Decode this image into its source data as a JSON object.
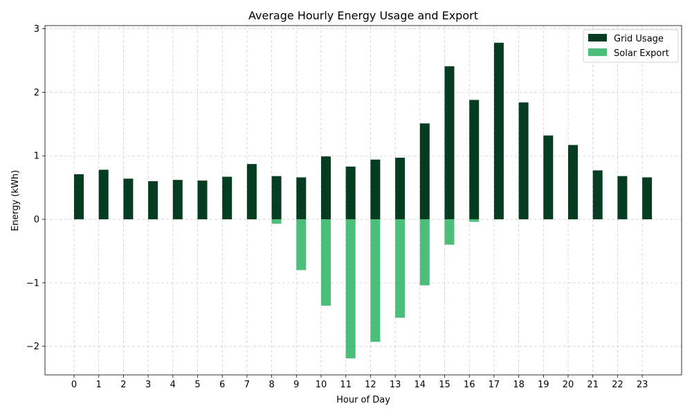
{
  "chart_data": {
    "type": "bar",
    "title": "Average Hourly Energy Usage and Export",
    "xlabel": "Hour of Day",
    "ylabel": "Energy (kWh)",
    "ylim": [
      -2.45,
      3.05
    ],
    "yticks": [
      -2,
      -1,
      0,
      1,
      2,
      3
    ],
    "ytick_labels": [
      "−2",
      "−1",
      "0",
      "1",
      "2",
      "3"
    ],
    "grid": true,
    "legend_position": "top-right",
    "categories": [
      "0",
      "1",
      "2",
      "3",
      "4",
      "5",
      "6",
      "7",
      "8",
      "9",
      "10",
      "11",
      "12",
      "13",
      "14",
      "15",
      "16",
      "17",
      "18",
      "19",
      "20",
      "21",
      "22",
      "23"
    ],
    "series": [
      {
        "name": "Grid Usage",
        "color": "#063d21",
        "values": [
          0.71,
          0.78,
          0.64,
          0.6,
          0.62,
          0.61,
          0.67,
          0.87,
          0.68,
          0.66,
          0.99,
          0.83,
          0.94,
          0.97,
          1.51,
          2.41,
          1.88,
          2.78,
          1.84,
          1.32,
          1.17,
          0.77,
          0.68,
          0.66
        ]
      },
      {
        "name": "Solar Export",
        "color": "#4bbf7a",
        "values": [
          0,
          0,
          0,
          0,
          0,
          0,
          0,
          0,
          -0.07,
          -0.8,
          -1.36,
          -2.19,
          -1.93,
          -1.55,
          -1.04,
          -0.4,
          -0.04,
          0,
          0,
          0,
          0,
          0,
          0,
          0
        ]
      }
    ]
  }
}
